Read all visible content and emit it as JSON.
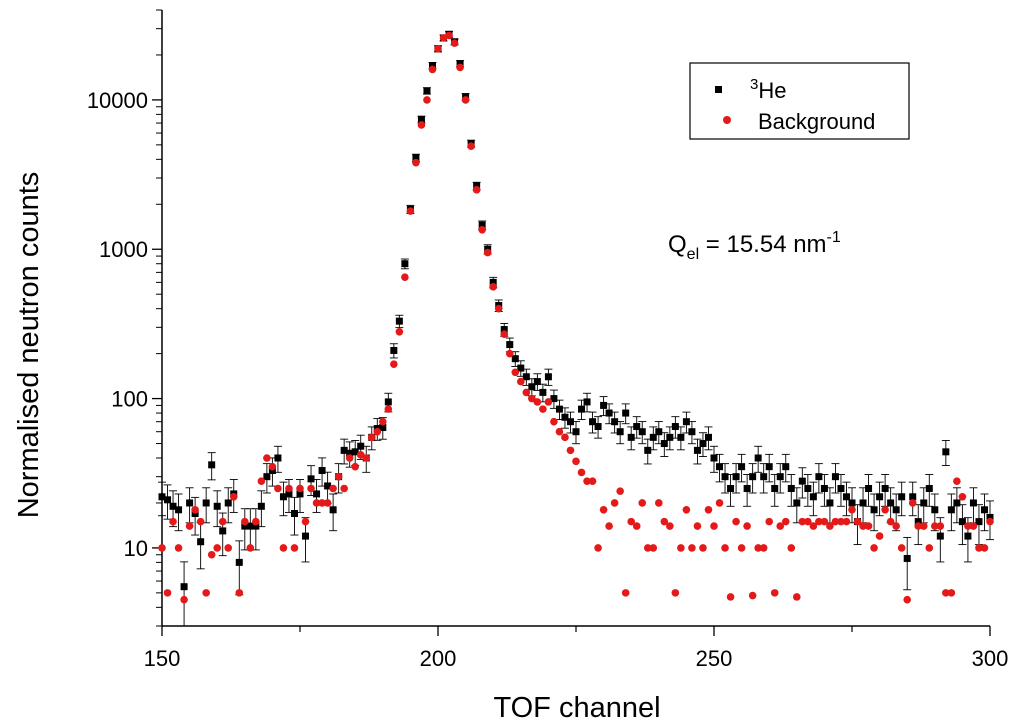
{
  "chart_data": {
    "type": "scatter",
    "title": "",
    "xlabel": "TOF channel",
    "ylabel": "Normalised neutron counts",
    "xlim": [
      150,
      300
    ],
    "ylim": [
      3,
      40000
    ],
    "yscale": "log",
    "grid": false,
    "legend_position": "top-right",
    "x_ticks": [
      "150",
      "200",
      "250",
      "300"
    ],
    "y_ticks": [
      "10",
      "100",
      "1000",
      "10000"
    ],
    "annotation": {
      "prefix": "Q",
      "subscript": "el",
      "value_text": " = 15.54 nm",
      "superscript": "-1"
    },
    "series": [
      {
        "name": "He",
        "name_superscript": "3",
        "marker": "square",
        "color": "#000000",
        "error_bars": true,
        "points": [
          [
            150,
            22
          ],
          [
            151,
            21
          ],
          [
            152,
            19
          ],
          [
            153,
            18
          ],
          [
            154,
            5.5
          ],
          [
            155,
            20
          ],
          [
            156,
            17
          ],
          [
            157,
            11
          ],
          [
            158,
            20
          ],
          [
            159,
            36
          ],
          [
            160,
            19
          ],
          [
            161,
            13
          ],
          [
            162,
            20
          ],
          [
            163,
            23
          ],
          [
            164,
            8
          ],
          [
            165,
            14
          ],
          [
            166,
            14
          ],
          [
            167,
            14
          ],
          [
            168,
            19
          ],
          [
            169,
            30
          ],
          [
            170,
            33
          ],
          [
            171,
            40
          ],
          [
            172,
            22
          ],
          [
            173,
            23
          ],
          [
            174,
            17
          ],
          [
            175,
            23
          ],
          [
            176,
            12
          ],
          [
            177,
            29
          ],
          [
            178,
            23
          ],
          [
            179,
            33
          ],
          [
            180,
            26
          ],
          [
            181,
            18
          ],
          [
            182,
            30
          ],
          [
            183,
            45
          ],
          [
            184,
            43
          ],
          [
            185,
            44
          ],
          [
            186,
            48
          ],
          [
            187,
            40
          ],
          [
            188,
            55
          ],
          [
            189,
            63
          ],
          [
            190,
            64
          ],
          [
            191,
            95
          ],
          [
            192,
            210
          ],
          [
            193,
            330
          ],
          [
            194,
            800
          ],
          [
            195,
            1850
          ],
          [
            196,
            4100
          ],
          [
            197,
            7400
          ],
          [
            198,
            11500
          ],
          [
            199,
            17000
          ],
          [
            200,
            22000
          ],
          [
            201,
            26000
          ],
          [
            202,
            27500
          ],
          [
            203,
            24500
          ],
          [
            204,
            17500
          ],
          [
            205,
            10500
          ],
          [
            206,
            5100
          ],
          [
            207,
            2650
          ],
          [
            208,
            1450
          ],
          [
            209,
            1000
          ],
          [
            210,
            600
          ],
          [
            211,
            420
          ],
          [
            212,
            290
          ],
          [
            213,
            230
          ],
          [
            214,
            185
          ],
          [
            215,
            160
          ],
          [
            216,
            140
          ],
          [
            217,
            120
          ],
          [
            218,
            130
          ],
          [
            219,
            110
          ],
          [
            220,
            140
          ],
          [
            221,
            100
          ],
          [
            222,
            85
          ],
          [
            223,
            75
          ],
          [
            224,
            70
          ],
          [
            225,
            60
          ],
          [
            226,
            85
          ],
          [
            227,
            95
          ],
          [
            228,
            70
          ],
          [
            229,
            65
          ],
          [
            230,
            90
          ],
          [
            231,
            80
          ],
          [
            232,
            70
          ],
          [
            233,
            60
          ],
          [
            234,
            80
          ],
          [
            235,
            55
          ],
          [
            236,
            65
          ],
          [
            237,
            60
          ],
          [
            238,
            45
          ],
          [
            239,
            55
          ],
          [
            240,
            60
          ],
          [
            241,
            50
          ],
          [
            242,
            55
          ],
          [
            243,
            65
          ],
          [
            244,
            55
          ],
          [
            245,
            70
          ],
          [
            246,
            60
          ],
          [
            247,
            45
          ],
          [
            248,
            50
          ],
          [
            249,
            55
          ],
          [
            250,
            40
          ],
          [
            251,
            35
          ],
          [
            252,
            30
          ],
          [
            253,
            25
          ],
          [
            254,
            30
          ],
          [
            255,
            35
          ],
          [
            256,
            25
          ],
          [
            257,
            30
          ],
          [
            258,
            40
          ],
          [
            259,
            30
          ],
          [
            260,
            35
          ],
          [
            261,
            25
          ],
          [
            262,
            30
          ],
          [
            263,
            35
          ],
          [
            264,
            25
          ],
          [
            265,
            20
          ],
          [
            266,
            28
          ],
          [
            267,
            25
          ],
          [
            268,
            22
          ],
          [
            269,
            30
          ],
          [
            270,
            25
          ],
          [
            271,
            20
          ],
          [
            272,
            30
          ],
          [
            273,
            25
          ],
          [
            274,
            22
          ],
          [
            275,
            20
          ],
          [
            276,
            15
          ],
          [
            277,
            20
          ],
          [
            278,
            25
          ],
          [
            279,
            18
          ],
          [
            280,
            22
          ],
          [
            281,
            25
          ],
          [
            282,
            20
          ],
          [
            283,
            18
          ],
          [
            284,
            22
          ],
          [
            285,
            8.5
          ],
          [
            286,
            22
          ],
          [
            287,
            15
          ],
          [
            288,
            20
          ],
          [
            289,
            25
          ],
          [
            290,
            18
          ],
          [
            291,
            12
          ],
          [
            292,
            44
          ],
          [
            293,
            18
          ],
          [
            294,
            20
          ],
          [
            295,
            15
          ],
          [
            296,
            12
          ],
          [
            297,
            20
          ],
          [
            298,
            15
          ],
          [
            299,
            18
          ],
          [
            300,
            16
          ]
        ]
      },
      {
        "name": "Background",
        "marker": "circle",
        "color": "#e41a1a",
        "error_bars": false,
        "points": [
          [
            150,
            10
          ],
          [
            151,
            5
          ],
          [
            152,
            15
          ],
          [
            153,
            10
          ],
          [
            154,
            4.5
          ],
          [
            155,
            14
          ],
          [
            156,
            18
          ],
          [
            157,
            15
          ],
          [
            158,
            5
          ],
          [
            159,
            9
          ],
          [
            160,
            10
          ],
          [
            161,
            15
          ],
          [
            162,
            10
          ],
          [
            163,
            22
          ],
          [
            164,
            5
          ],
          [
            165,
            15
          ],
          [
            166,
            10
          ],
          [
            167,
            15
          ],
          [
            168,
            28
          ],
          [
            169,
            40
          ],
          [
            170,
            35
          ],
          [
            171,
            25
          ],
          [
            172,
            10
          ],
          [
            173,
            25
          ],
          [
            174,
            10
          ],
          [
            175,
            25
          ],
          [
            176,
            15
          ],
          [
            177,
            25
          ],
          [
            178,
            20
          ],
          [
            179,
            20
          ],
          [
            180,
            20
          ],
          [
            181,
            25
          ],
          [
            182,
            30
          ],
          [
            183,
            25
          ],
          [
            184,
            40
          ],
          [
            185,
            35
          ],
          [
            186,
            42
          ],
          [
            187,
            40
          ],
          [
            188,
            55
          ],
          [
            189,
            60
          ],
          [
            190,
            70
          ],
          [
            191,
            85
          ],
          [
            192,
            170
          ],
          [
            193,
            280
          ],
          [
            194,
            650
          ],
          [
            195,
            1800
          ],
          [
            196,
            3800
          ],
          [
            197,
            6800
          ],
          [
            198,
            10000
          ],
          [
            199,
            16000
          ],
          [
            200,
            22000
          ],
          [
            201,
            26000
          ],
          [
            202,
            27000
          ],
          [
            203,
            24000
          ],
          [
            204,
            16500
          ],
          [
            205,
            10000
          ],
          [
            206,
            4900
          ],
          [
            207,
            2500
          ],
          [
            208,
            1350
          ],
          [
            209,
            950
          ],
          [
            210,
            560
          ],
          [
            211,
            400
          ],
          [
            212,
            270
          ],
          [
            213,
            200
          ],
          [
            214,
            150
          ],
          [
            215,
            130
          ],
          [
            216,
            110
          ],
          [
            217,
            100
          ],
          [
            218,
            95
          ],
          [
            219,
            85
          ],
          [
            220,
            95
          ],
          [
            221,
            70
          ],
          [
            222,
            60
          ],
          [
            223,
            55
          ],
          [
            224,
            45
          ],
          [
            225,
            38
          ],
          [
            226,
            32
          ],
          [
            227,
            28
          ],
          [
            228,
            28
          ],
          [
            229,
            10
          ],
          [
            230,
            18
          ],
          [
            231,
            14
          ],
          [
            232,
            20
          ],
          [
            233,
            24
          ],
          [
            234,
            5
          ],
          [
            235,
            15
          ],
          [
            236,
            14
          ],
          [
            237,
            20
          ],
          [
            238,
            10
          ],
          [
            239,
            10
          ],
          [
            240,
            20
          ],
          [
            241,
            15
          ],
          [
            242,
            14
          ],
          [
            243,
            5
          ],
          [
            244,
            10
          ],
          [
            245,
            18
          ],
          [
            246,
            10
          ],
          [
            247,
            14
          ],
          [
            248,
            10
          ],
          [
            249,
            18
          ],
          [
            250,
            14
          ],
          [
            251,
            20
          ],
          [
            252,
            10
          ],
          [
            253,
            4.7
          ],
          [
            254,
            15
          ],
          [
            255,
            10
          ],
          [
            256,
            14
          ],
          [
            257,
            4.8
          ],
          [
            258,
            10
          ],
          [
            259,
            10
          ],
          [
            260,
            15
          ],
          [
            261,
            5
          ],
          [
            262,
            14
          ],
          [
            263,
            15
          ],
          [
            264,
            10
          ],
          [
            265,
            4.7
          ],
          [
            266,
            15
          ],
          [
            267,
            15
          ],
          [
            268,
            14
          ],
          [
            269,
            15
          ],
          [
            270,
            15
          ],
          [
            271,
            14
          ],
          [
            272,
            15
          ],
          [
            273,
            15
          ],
          [
            274,
            15
          ],
          [
            275,
            18
          ],
          [
            276,
            15
          ],
          [
            277,
            14
          ],
          [
            278,
            14
          ],
          [
            279,
            10
          ],
          [
            280,
            12
          ],
          [
            281,
            18
          ],
          [
            282,
            15
          ],
          [
            283,
            14
          ],
          [
            284,
            10
          ],
          [
            285,
            4.5
          ],
          [
            286,
            20
          ],
          [
            287,
            14
          ],
          [
            288,
            14
          ],
          [
            289,
            10
          ],
          [
            290,
            14
          ],
          [
            291,
            14
          ],
          [
            292,
            5
          ],
          [
            293,
            5
          ],
          [
            294,
            28
          ],
          [
            295,
            22
          ],
          [
            296,
            14
          ],
          [
            297,
            14
          ],
          [
            298,
            10
          ],
          [
            299,
            10
          ],
          [
            300,
            15
          ]
        ]
      }
    ]
  }
}
